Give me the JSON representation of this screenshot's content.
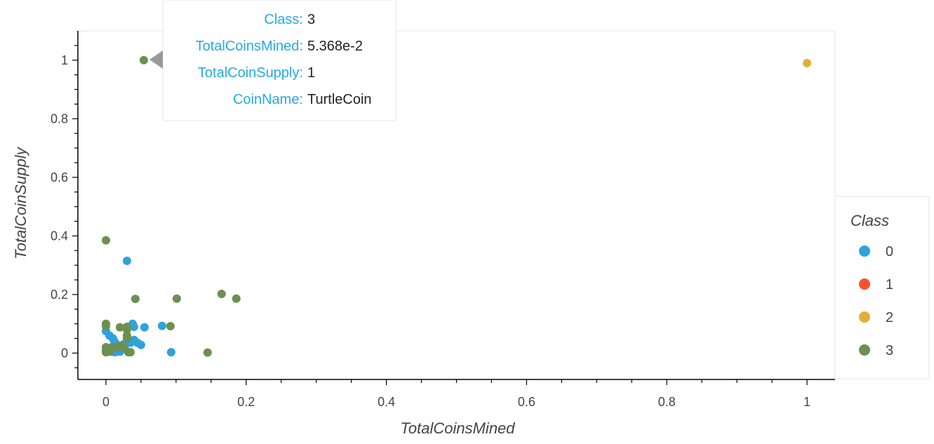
{
  "chart_data": {
    "type": "scatter",
    "title": "",
    "xlabel": "TotalCoinsMined",
    "ylabel": "TotalCoinSupply",
    "xlim": [
      -0.04,
      1.04
    ],
    "ylim": [
      -0.09,
      1.1
    ],
    "xticks": [
      "0",
      "0.2",
      "0.4",
      "0.6",
      "0.8",
      "1"
    ],
    "yticks": [
      "0",
      "0.2",
      "0.4",
      "0.6",
      "0.8",
      "1"
    ],
    "grid": false,
    "legend": {
      "title": "Class",
      "placement": "right"
    },
    "series": [
      {
        "name": "0",
        "color": "#30a2da",
        "points": [
          [
            0.0,
            0.075
          ],
          [
            0.005,
            0.06
          ],
          [
            0.01,
            0.05
          ],
          [
            0.012,
            0.04
          ],
          [
            0.015,
            0.03
          ],
          [
            0.008,
            0.02
          ],
          [
            0.01,
            0.005
          ],
          [
            0.013,
            0.003
          ],
          [
            0.02,
            0.005
          ],
          [
            0.022,
            0.02
          ],
          [
            0.025,
            0.03
          ],
          [
            0.03,
            0.315
          ],
          [
            0.035,
            0.035
          ],
          [
            0.038,
            0.1
          ],
          [
            0.04,
            0.09
          ],
          [
            0.04,
            0.045
          ],
          [
            0.045,
            0.035
          ],
          [
            0.05,
            0.028
          ],
          [
            0.055,
            0.088
          ],
          [
            0.08,
            0.093
          ],
          [
            0.093,
            0.003
          ],
          [
            0.027,
            0.015
          ],
          [
            0.018,
            0.01
          ],
          [
            0.005,
            0.01
          ]
        ]
      },
      {
        "name": "1",
        "color": "#fc4f30",
        "points": []
      },
      {
        "name": "2",
        "color": "#e5ae38",
        "points": [
          [
            1.0,
            0.99
          ]
        ]
      },
      {
        "name": "3",
        "color": "#6d904f",
        "points": [
          [
            0.0,
            0.385
          ],
          [
            0.0,
            0.1
          ],
          [
            0.0,
            0.092
          ],
          [
            0.0,
            0.02
          ],
          [
            0.0,
            0.01
          ],
          [
            0.0,
            0.003
          ],
          [
            0.005,
            0.005
          ],
          [
            0.005,
            0.015
          ],
          [
            0.01,
            0.02
          ],
          [
            0.015,
            0.02
          ],
          [
            0.02,
            0.025
          ],
          [
            0.025,
            0.02
          ],
          [
            0.02,
            0.088
          ],
          [
            0.03,
            0.09
          ],
          [
            0.03,
            0.08
          ],
          [
            0.03,
            0.06
          ],
          [
            0.03,
            0.05
          ],
          [
            0.032,
            0.003
          ],
          [
            0.035,
            0.003
          ],
          [
            0.042,
            0.185
          ],
          [
            0.054,
            1.0
          ],
          [
            0.092,
            0.092
          ],
          [
            0.101,
            0.186
          ],
          [
            0.145,
            0.002
          ],
          [
            0.165,
            0.202
          ],
          [
            0.186,
            0.186
          ]
        ]
      }
    ],
    "tooltip": {
      "rows": [
        {
          "key": "Class:",
          "value": "3"
        },
        {
          "key": "TotalCoinsMined:",
          "value": "5.368e-2"
        },
        {
          "key": "TotalCoinSupply:",
          "value": "1"
        },
        {
          "key": "CoinName:",
          "value": "TurtleCoin"
        }
      ]
    }
  }
}
